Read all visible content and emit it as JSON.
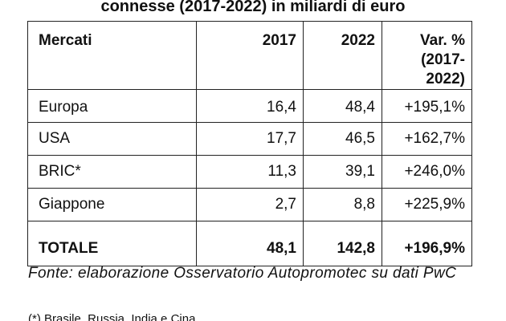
{
  "title": "connesse (2017-2022) in miliardi di euro",
  "table": {
    "headers": {
      "market": "Mercati",
      "y2017": "2017",
      "y2022": "2022",
      "var_line1": "Var. %",
      "var_line2": "(2017-2022)"
    },
    "rows": [
      {
        "market": "Europa",
        "y2017": "16,4",
        "y2022": "48,4",
        "var": "+195,1%"
      },
      {
        "market": "USA",
        "y2017": "17,7",
        "y2022": "46,5",
        "var": "+162,7%"
      },
      {
        "market": "BRIC*",
        "y2017": "11,3",
        "y2022": "39,1",
        "var": "+246,0%"
      },
      {
        "market": "Giappone",
        "y2017": "2,7",
        "y2022": "8,8",
        "var": "+225,9%"
      }
    ],
    "total": {
      "market": "TOTALE",
      "y2017": "48,1",
      "y2022": "142,8",
      "var": "+196,9%"
    }
  },
  "source": "Fonte: elaborazione Osservatorio Autopromotec su dati PwC",
  "footnote": "(*) Brasile, Russia, India e Cina"
}
